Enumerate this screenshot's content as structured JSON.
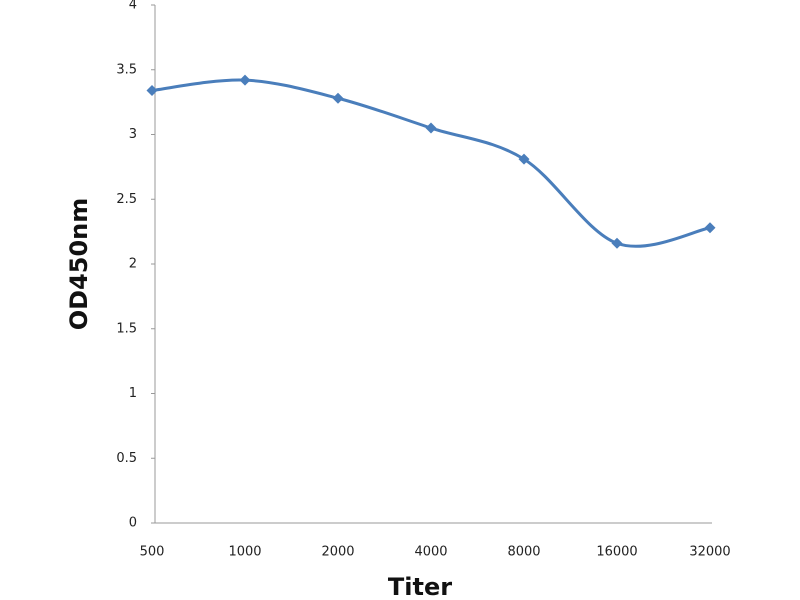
{
  "chart_data": {
    "type": "line",
    "x_label": "Titer",
    "y_label": "OD450nm",
    "categories": [
      "500",
      "1000",
      "2000",
      "4000",
      "8000",
      "16000",
      "32000"
    ],
    "series": [
      {
        "color": "#4a7ebb",
        "values": [
          3.34,
          3.42,
          3.28,
          3.05,
          2.81,
          2.16,
          2.28
        ]
      }
    ],
    "ylim": [
      0,
      4
    ],
    "yticks": [
      0,
      0.5,
      1,
      1.5,
      2,
      2.5,
      3,
      3.5,
      4
    ],
    "smooth": true,
    "marker": "diamond"
  }
}
